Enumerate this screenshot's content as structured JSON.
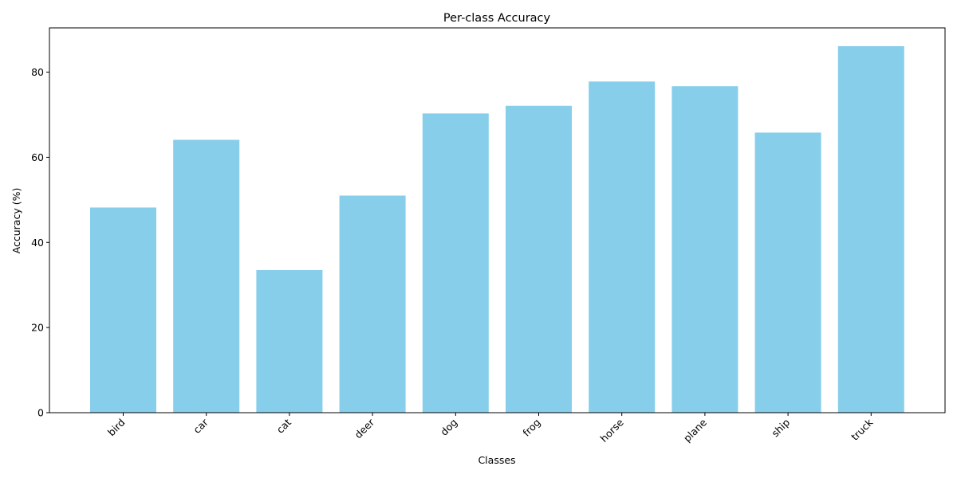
{
  "chart_data": {
    "type": "bar",
    "title": "Per-class Accuracy",
    "xlabel": "Classes",
    "ylabel": "Accuracy (%)",
    "categories": [
      "bird",
      "car",
      "cat",
      "deer",
      "dog",
      "frog",
      "horse",
      "plane",
      "ship",
      "truck"
    ],
    "values": [
      48.2,
      64.1,
      33.5,
      51.0,
      70.3,
      72.1,
      77.8,
      76.7,
      65.8,
      86.1
    ],
    "ylim": [
      0,
      90.4
    ],
    "yticks": [
      0,
      20,
      40,
      60,
      80
    ],
    "bar_color": "#87CEEB",
    "grid": false,
    "legend": "none"
  }
}
